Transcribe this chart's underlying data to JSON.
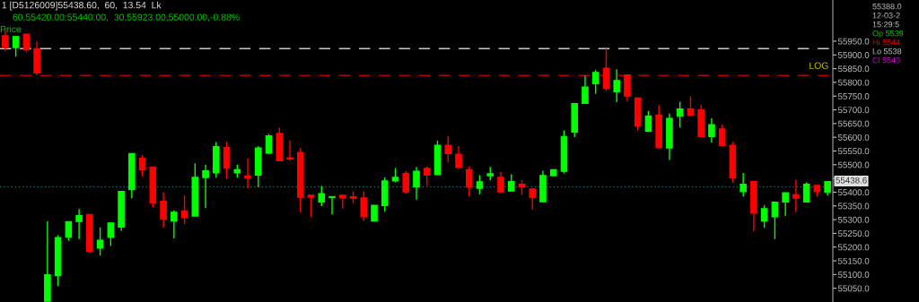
{
  "chart_data": {
    "type": "candlestick",
    "title": "1 [D5126009]55438.60,  60,  13.54  Lk",
    "subtitle": "60,55420.00:55440.00,  30,55923.00,55000.00,-0.88%",
    "ylabel": "Price",
    "categories": [
      null,
      null,
      null,
      null,
      null,
      null,
      null,
      null,
      null,
      null,
      null,
      null,
      null,
      null,
      null,
      null,
      null,
      null,
      null,
      null,
      null,
      null,
      null,
      null,
      null,
      null,
      null,
      null,
      null,
      null,
      null,
      null,
      null,
      null,
      null,
      null,
      null,
      null,
      null,
      null,
      null,
      null,
      null,
      null,
      null,
      null,
      null,
      null,
      null,
      null,
      null,
      null,
      null,
      null,
      null,
      null,
      null,
      null,
      null,
      null,
      null,
      null,
      null,
      null,
      null,
      null,
      null,
      null,
      null,
      null,
      null,
      null,
      null,
      null,
      null,
      null,
      null,
      null,
      null
    ],
    "ohlc": [
      [
        55970,
        55995,
        55913,
        55926
      ],
      [
        55926,
        55967,
        55894,
        55967
      ],
      [
        55976,
        55976,
        55910,
        55918
      ],
      [
        55923,
        55950,
        55826,
        55834
      ],
      [
        55003,
        55294,
        55003,
        55099
      ],
      [
        55096,
        55243,
        55058,
        55235
      ],
      [
        55236,
        55293,
        55223,
        55293
      ],
      [
        55293,
        55339,
        55229,
        55315
      ],
      [
        55319,
        55319,
        55178,
        55185
      ],
      [
        55196,
        55272,
        55169,
        55225
      ],
      [
        55235,
        55288,
        55204,
        55288
      ],
      [
        55273,
        55403,
        55259,
        55403
      ],
      [
        55409,
        55541,
        55378,
        55541
      ],
      [
        55524,
        55535,
        55457,
        55481
      ],
      [
        55492,
        55492,
        55346,
        55361
      ],
      [
        55367,
        55400,
        55270,
        55301
      ],
      [
        55295,
        55334,
        55232,
        55327
      ],
      [
        55332,
        55388,
        55284,
        55307
      ],
      [
        55313,
        55505,
        55313,
        55454
      ],
      [
        55453,
        55500,
        55342,
        55478
      ],
      [
        55470,
        55583,
        55453,
        55566
      ],
      [
        55563,
        55583,
        55449,
        55487
      ],
      [
        55470,
        55500,
        55453,
        55482
      ],
      [
        55459,
        55523,
        55414,
        55451
      ],
      [
        55462,
        55568,
        55418,
        55561
      ],
      [
        55542,
        55612,
        55538,
        55605
      ],
      [
        55614,
        55635,
        55514,
        55514
      ],
      [
        55525,
        55588,
        55514,
        55521
      ],
      [
        55545,
        55561,
        55326,
        55381
      ],
      [
        55389,
        55389,
        55310,
        55381
      ],
      [
        55364,
        55423,
        55349,
        55395
      ],
      [
        55381,
        55384,
        55319,
        55384
      ],
      [
        55389,
        55389,
        55340,
        55379
      ],
      [
        55383,
        55403,
        55359,
        55378
      ],
      [
        55379,
        55403,
        55295,
        55310
      ],
      [
        55295,
        55352,
        55295,
        55352
      ],
      [
        55351,
        55454,
        55329,
        55441
      ],
      [
        55441,
        55488,
        55436,
        55454
      ],
      [
        55468,
        55476,
        55395,
        55401
      ],
      [
        55419,
        55492,
        55373,
        55476
      ],
      [
        55487,
        55494,
        55425,
        55462
      ],
      [
        55464,
        55588,
        55464,
        55571
      ],
      [
        55571,
        55603,
        55508,
        55540
      ],
      [
        55538,
        55568,
        55485,
        55490
      ],
      [
        55482,
        55494,
        55384,
        55418
      ],
      [
        55414,
        55462,
        55392,
        55438
      ],
      [
        55460,
        55492,
        55443,
        55467
      ],
      [
        55454,
        55473,
        55401,
        55401
      ],
      [
        55404,
        55465,
        55404,
        55439
      ],
      [
        55429,
        55444,
        55390,
        55419
      ],
      [
        55412,
        55412,
        55337,
        55381
      ],
      [
        55365,
        55478,
        55365,
        55461
      ],
      [
        55460,
        55482,
        55460,
        55482
      ],
      [
        55476,
        55625,
        55468,
        55603
      ],
      [
        55619,
        55723,
        55601,
        55723
      ],
      [
        55723,
        55824,
        55723,
        55783
      ],
      [
        55795,
        55845,
        55758,
        55836
      ],
      [
        55852,
        55923,
        55769,
        55778
      ],
      [
        55766,
        55848,
        55728,
        55807
      ],
      [
        55827,
        55827,
        55731,
        55750
      ],
      [
        55743,
        55743,
        55625,
        55641
      ],
      [
        55622,
        55696,
        55622,
        55677
      ],
      [
        55681,
        55717,
        55562,
        55562
      ],
      [
        55561,
        55686,
        55517,
        55669
      ],
      [
        55677,
        55729,
        55635,
        55703
      ],
      [
        55703,
        55749,
        55680,
        55680
      ],
      [
        55701,
        55718,
        55602,
        55602
      ],
      [
        55602,
        55669,
        55581,
        55646
      ],
      [
        55631,
        55646,
        55570,
        55570
      ],
      [
        55571,
        55583,
        55434,
        55452
      ],
      [
        55402,
        55470,
        55384,
        55429
      ],
      [
        55439,
        55439,
        55257,
        55323
      ],
      [
        55295,
        55353,
        55270,
        55340
      ],
      [
        55310,
        55364,
        55229,
        55364
      ],
      [
        55364,
        55398,
        55313,
        55398
      ],
      [
        55391,
        55444,
        55327,
        55378
      ],
      [
        55364,
        55436,
        55364,
        55429
      ],
      [
        55425,
        55425,
        55384,
        55402
      ],
      [
        55399,
        55440,
        55388,
        55438.6
      ]
    ],
    "colors": [
      "#ff0000",
      "#00ff00",
      "#ff0000",
      "#ff0000",
      "#00ff00",
      "#00ff00",
      "#00ff00",
      "#00ff00",
      "#ff0000",
      "#00ff00",
      "#00ff00",
      "#00ff00",
      "#00ff00",
      "#ff0000",
      "#ff0000",
      "#ff0000",
      "#00ff00",
      "#ff0000",
      "#00ff00",
      "#00ff00",
      "#00ff00",
      "#ff0000",
      "#00ff00",
      "#ff0000",
      "#00ff00",
      "#00ff00",
      "#ff0000",
      "#ff0000",
      "#ff0000",
      "#ff0000",
      "#00ff00",
      "#00ff00",
      "#ff0000",
      "#ff0000",
      "#ff0000",
      "#00ff00",
      "#00ff00",
      "#00ff00",
      "#ff0000",
      "#00ff00",
      "#ff0000",
      "#00ff00",
      "#ff0000",
      "#ff0000",
      "#ff0000",
      "#00ff00",
      "#00ff00",
      "#ff0000",
      "#00ff00",
      "#ff0000",
      "#ff0000",
      "#00ff00",
      "#00ff00",
      "#00ff00",
      "#00ff00",
      "#00ff00",
      "#00ff00",
      "#ff0000",
      "#00ff00",
      "#ff0000",
      "#ff0000",
      "#00ff00",
      "#ff0000",
      "#00ff00",
      "#00ff00",
      "#ff0000",
      "#ff0000",
      "#00ff00",
      "#ff0000",
      "#ff0000",
      "#00ff00",
      "#ff0000",
      "#00ff00",
      "#00ff00",
      "#00ff00",
      "#ff0000",
      "#00ff00",
      "#ff0000",
      "#00ff00"
    ],
    "ylim": [
      55000,
      56100
    ],
    "yticks": [
      {
        "value": 55050,
        "label": "55050.0"
      },
      {
        "value": 55100,
        "label": "55100.0"
      },
      {
        "value": 55150,
        "label": "55150.0"
      },
      {
        "value": 55200,
        "label": "55200.0"
      },
      {
        "value": 55250,
        "label": "55250.0"
      },
      {
        "value": 55300,
        "label": "55300.0"
      },
      {
        "value": 55350,
        "label": "55350.0"
      },
      {
        "value": 55400,
        "label": "55400.0"
      },
      {
        "value": 55450,
        "label": null
      },
      {
        "value": 55500,
        "label": "55500.0"
      },
      {
        "value": 55550,
        "label": "55550.0"
      },
      {
        "value": 55600,
        "label": "55600.0"
      },
      {
        "value": 55650,
        "label": "55650.0"
      },
      {
        "value": 55700,
        "label": "55700.0"
      },
      {
        "value": 55750,
        "label": "55750.0"
      },
      {
        "value": 55800,
        "label": "55800.0"
      },
      {
        "value": 55850,
        "label": "55850.0"
      },
      {
        "value": 55900,
        "label": "55900.0"
      },
      {
        "value": 55950,
        "label": "55950.0"
      }
    ],
    "tick_labels": "y",
    "grid": false,
    "ref_lines": [
      {
        "axis": "y",
        "value": 55923,
        "color": "#c8c8c8",
        "line_style": "dashed"
      },
      {
        "axis": "y",
        "value": 55825,
        "color": "#b00000",
        "line_style": "dashed"
      },
      {
        "axis": "y",
        "value": 55420,
        "color": "#1e6e6e",
        "line_style": "dotted"
      }
    ],
    "annotations": [
      "LOG",
      "55388.0",
      "12-03-2",
      "15:29:5",
      "Op 5539",
      "Hi 5544",
      "Lo 5538",
      "Cl 5543",
      "55438.6"
    ]
  }
}
